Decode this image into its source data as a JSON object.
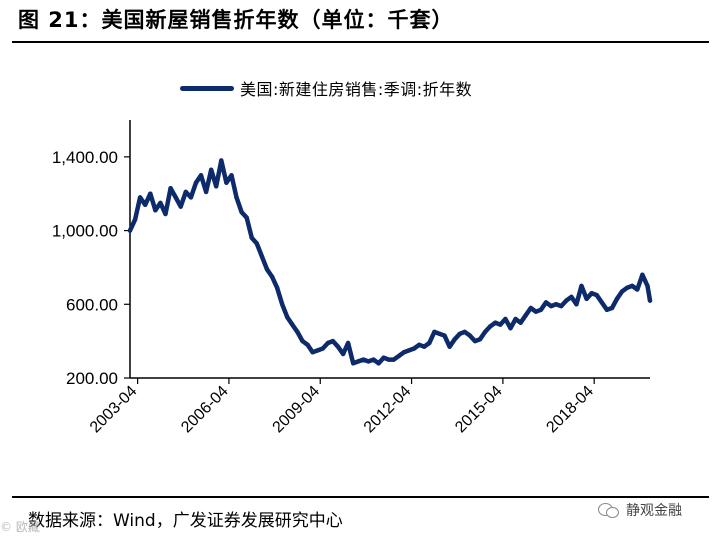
{
  "header": {
    "title": "图 21：美国新屋销售折年数（单位：千套）"
  },
  "footer": {
    "source": "数据来源：Wind，广发证券发展研究中心",
    "watermark": "静观金融",
    "watermark_left": "© 欧藏"
  },
  "colors": {
    "series": "#0d2a6b",
    "axis": "#000000",
    "text": "#000000"
  },
  "chart_data": {
    "type": "line",
    "title": "",
    "xlabel": "",
    "ylabel": "",
    "legend_position": "top-center",
    "grid": false,
    "ylim": [
      200,
      1600
    ],
    "yticks": [
      200,
      600,
      1000,
      1400
    ],
    "ytick_labels": [
      "200.00",
      "600.00",
      "1,000.00",
      "1,400.00"
    ],
    "xticks": [
      "2003-04",
      "2006-04",
      "2009-04",
      "2012-04",
      "2015-04",
      "2018-04"
    ],
    "x_range": [
      "2003-01",
      "2020-02"
    ],
    "series": [
      {
        "name": "美国:新建住房销售:季调:折年数",
        "x": [
          "2003-01",
          "2003-03",
          "2003-05",
          "2003-07",
          "2003-09",
          "2003-11",
          "2004-01",
          "2004-03",
          "2004-05",
          "2004-07",
          "2004-09",
          "2004-11",
          "2005-01",
          "2005-03",
          "2005-05",
          "2005-07",
          "2005-09",
          "2005-11",
          "2006-01",
          "2006-03",
          "2006-05",
          "2006-07",
          "2006-09",
          "2006-11",
          "2007-01",
          "2007-03",
          "2007-05",
          "2007-07",
          "2007-09",
          "2007-11",
          "2008-01",
          "2008-03",
          "2008-05",
          "2008-07",
          "2008-09",
          "2008-11",
          "2009-01",
          "2009-03",
          "2009-05",
          "2009-07",
          "2009-09",
          "2009-11",
          "2010-01",
          "2010-03",
          "2010-05",
          "2010-07",
          "2010-09",
          "2010-11",
          "2011-01",
          "2011-03",
          "2011-05",
          "2011-07",
          "2011-09",
          "2011-11",
          "2012-01",
          "2012-03",
          "2012-05",
          "2012-07",
          "2012-09",
          "2012-11",
          "2013-01",
          "2013-03",
          "2013-05",
          "2013-07",
          "2013-09",
          "2013-11",
          "2014-01",
          "2014-03",
          "2014-05",
          "2014-07",
          "2014-09",
          "2014-11",
          "2015-01",
          "2015-03",
          "2015-05",
          "2015-07",
          "2015-09",
          "2015-11",
          "2016-01",
          "2016-03",
          "2016-05",
          "2016-07",
          "2016-09",
          "2016-11",
          "2017-01",
          "2017-03",
          "2017-05",
          "2017-07",
          "2017-09",
          "2017-11",
          "2018-01",
          "2018-03",
          "2018-05",
          "2018-07",
          "2018-09",
          "2018-11",
          "2019-01",
          "2019-03",
          "2019-05",
          "2019-07",
          "2019-09",
          "2019-11",
          "2020-01",
          "2020-02"
        ],
        "values": [
          1000,
          1060,
          1180,
          1140,
          1200,
          1110,
          1150,
          1090,
          1230,
          1180,
          1130,
          1210,
          1180,
          1260,
          1300,
          1210,
          1330,
          1240,
          1380,
          1260,
          1300,
          1180,
          1100,
          1070,
          960,
          930,
          860,
          790,
          750,
          690,
          600,
          530,
          490,
          450,
          400,
          380,
          340,
          350,
          360,
          390,
          400,
          370,
          330,
          390,
          280,
          290,
          300,
          290,
          300,
          280,
          310,
          300,
          300,
          320,
          340,
          350,
          360,
          380,
          370,
          390,
          450,
          440,
          430,
          370,
          410,
          440,
          450,
          430,
          400,
          410,
          450,
          480,
          500,
          490,
          520,
          470,
          520,
          500,
          540,
          580,
          560,
          570,
          610,
          590,
          600,
          590,
          620,
          640,
          600,
          700,
          630,
          660,
          650,
          610,
          570,
          580,
          630,
          670,
          690,
          700,
          680,
          760,
          700,
          620
        ]
      }
    ]
  }
}
